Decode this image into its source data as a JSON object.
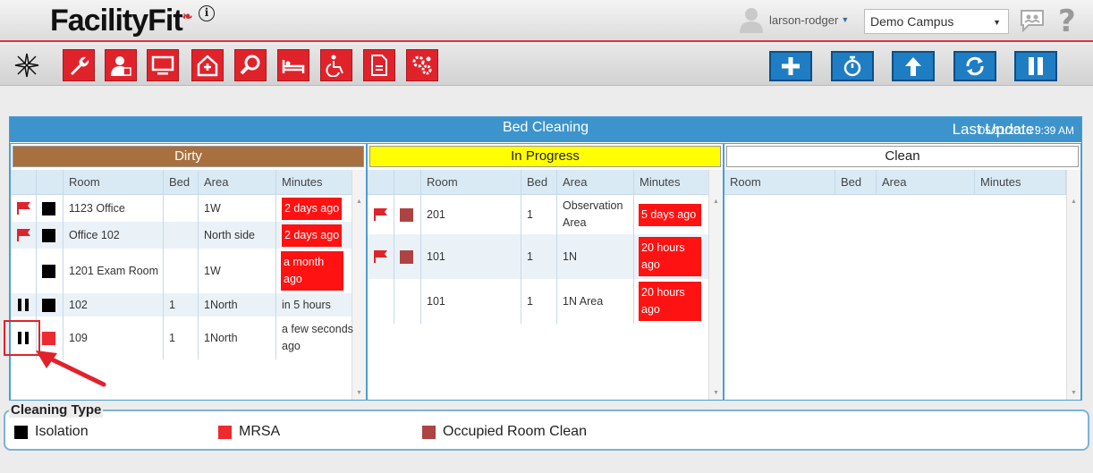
{
  "header": {
    "logo_text": "FacilityFit",
    "user": "larson-rodger",
    "campus": "Demo Campus"
  },
  "panel": {
    "title": "Bed Cleaning",
    "last_update_label": "Last Update:",
    "last_update_time": "05/11/2016 9:39 AM"
  },
  "columns": {
    "dirty": {
      "label": "Dirty",
      "color": "#a8703f",
      "headers": [
        "Room",
        "Bed",
        "Area",
        "Minutes"
      ],
      "rows": [
        {
          "icon": "flag",
          "type": "isolation",
          "room": "1123 Office",
          "bed": "",
          "area": "1W",
          "minutes": "2 days ago",
          "red": true
        },
        {
          "icon": "flag",
          "type": "isolation",
          "room": "Office 102",
          "bed": "",
          "area": "North side",
          "minutes": "2 days ago",
          "red": true
        },
        {
          "icon": "",
          "type": "isolation",
          "room": "1201 Exam Room",
          "bed": "",
          "area": "1W",
          "minutes": "a month ago",
          "red": true
        },
        {
          "icon": "pause",
          "type": "isolation",
          "room": "102",
          "bed": "1",
          "area": "1North",
          "minutes": "in 5 hours",
          "red": false
        },
        {
          "icon": "pause",
          "type": "mrsa",
          "room": "109",
          "bed": "1",
          "area": "1North",
          "minutes": "a few seconds ago",
          "red": false
        }
      ]
    },
    "inprogress": {
      "label": "In Progress",
      "color": "#ffff00",
      "headers": [
        "Room",
        "Bed",
        "Area",
        "Minutes"
      ],
      "rows": [
        {
          "icon": "flag",
          "type": "occupied",
          "room": "201",
          "bed": "1",
          "area": "Observation Area",
          "minutes": "5 days ago",
          "red": true
        },
        {
          "icon": "flag",
          "type": "occupied",
          "room": "101",
          "bed": "1",
          "area": "1N",
          "minutes": "20 hours ago",
          "red": true
        },
        {
          "icon": "",
          "type": "",
          "room": "101",
          "bed": "1",
          "area": "1N Area",
          "minutes": "20 hours ago",
          "red": true
        }
      ]
    },
    "clean": {
      "label": "Clean",
      "color": "#ffffff",
      "headers": [
        "Room",
        "Bed",
        "Area",
        "Minutes"
      ]
    }
  },
  "legend": {
    "title": "Cleaning Type",
    "items": [
      {
        "label": "Isolation",
        "color": "#000000"
      },
      {
        "label": "MRSA",
        "color": "#ed2a30"
      },
      {
        "label": "Occupied Room Clean",
        "color": "#ad4343"
      }
    ]
  }
}
